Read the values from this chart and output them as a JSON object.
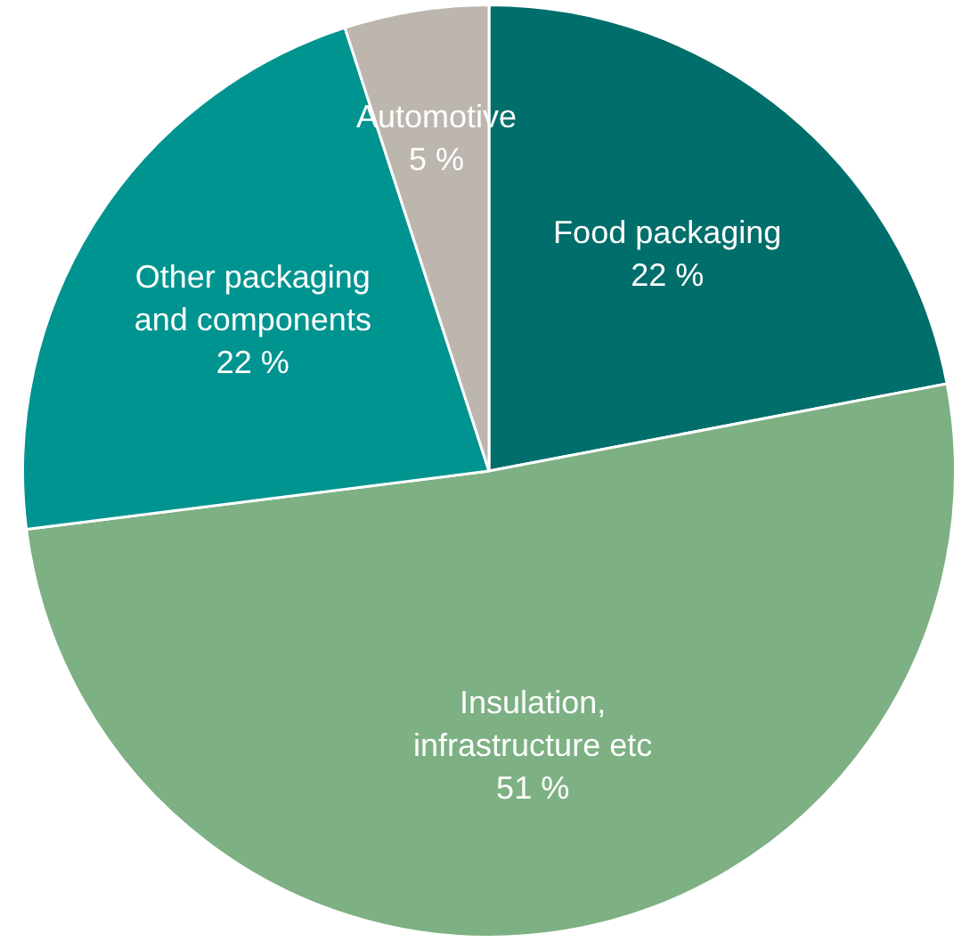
{
  "chart_data": {
    "type": "pie",
    "categories": [
      "Food packaging",
      "Insulation, infrastructure etc",
      "Other packaging and components",
      "Automotive"
    ],
    "values": [
      22,
      51,
      22,
      5
    ],
    "value_labels": [
      "22 %",
      "51 %",
      "22 %",
      "5 %"
    ],
    "colors": [
      "#006e6a",
      "#7db083",
      "#009490",
      "#bcb6ae"
    ],
    "legend": false
  }
}
